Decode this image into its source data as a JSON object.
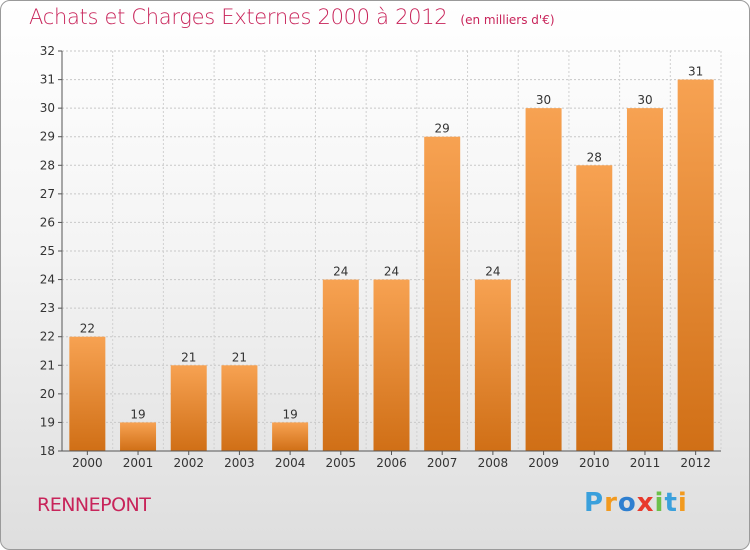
{
  "title": "Achats et Charges Externes 2000 à 2012",
  "unit_note": "(en milliers d'€)",
  "commune": "RENNEPONT",
  "logo": {
    "letters": [
      "P",
      "r",
      "o",
      "x",
      "i",
      "t",
      "i"
    ],
    "colors": [
      "#3aa0dc",
      "#f29a1f",
      "#2e7fd0",
      "#e8392c",
      "#6cc04a",
      "#3aa0dc",
      "#f29a1f"
    ]
  },
  "colors": {
    "accent": "#c8245a",
    "bar_top": "#f7a252",
    "bar_bottom": "#d06f16"
  },
  "chart_data": {
    "type": "bar",
    "title": "Achats et Charges Externes 2000 à 2012",
    "subtitle": "(en milliers d'€)",
    "categories": [
      "2000",
      "2001",
      "2002",
      "2003",
      "2004",
      "2005",
      "2006",
      "2007",
      "2008",
      "2009",
      "2010",
      "2011",
      "2012"
    ],
    "values": [
      22,
      19,
      21,
      21,
      19,
      24,
      24,
      29,
      24,
      30,
      28,
      30,
      31
    ],
    "ylim": [
      18,
      32
    ],
    "yticks": [
      18,
      19,
      20,
      21,
      22,
      23,
      24,
      25,
      26,
      27,
      28,
      29,
      30,
      31,
      32
    ],
    "grid": true,
    "xlabel": "",
    "ylabel": ""
  }
}
